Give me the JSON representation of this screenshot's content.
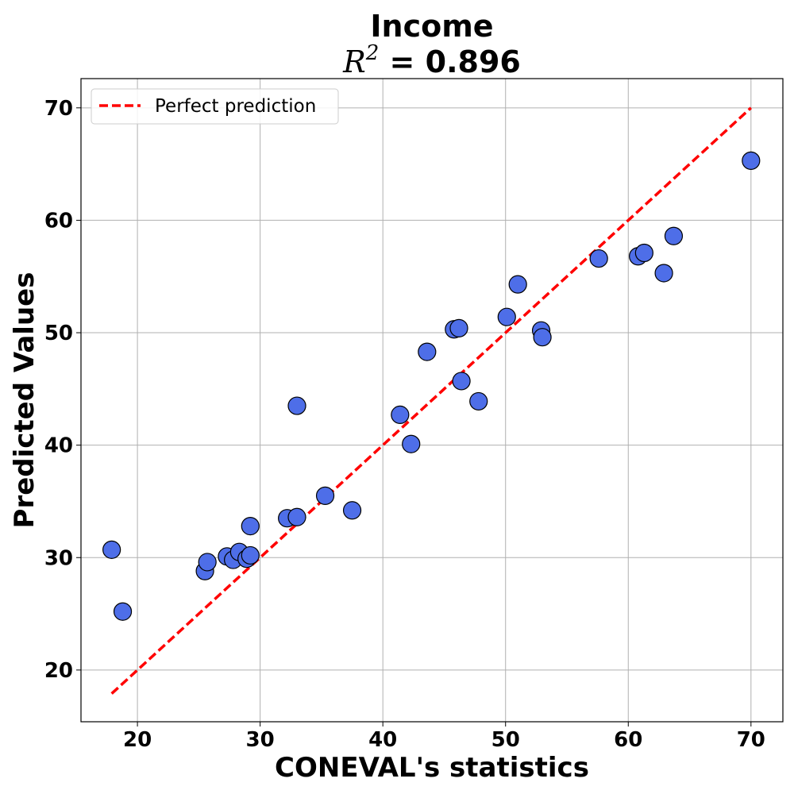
{
  "chart_data": {
    "type": "scatter",
    "title": "Income",
    "subtitle_prefix": "R",
    "subtitle_superscript": "2",
    "subtitle_value": " = 0.896",
    "xlabel": "CONEVAL's statistics",
    "ylabel": "Predicted Values",
    "xlim": [
      15.4,
      72.6
    ],
    "ylim": [
      15.4,
      72.6
    ],
    "xticks": [
      20,
      30,
      40,
      50,
      60,
      70
    ],
    "yticks": [
      20,
      30,
      40,
      50,
      60,
      70
    ],
    "grid": true,
    "legend_position": "top-left",
    "legend_label": "Perfect prediction",
    "reference_line": {
      "x": [
        17.9,
        70.0
      ],
      "y": [
        17.9,
        70.0
      ]
    },
    "point_color": "#4e6ee8",
    "point_edge_color": "#000000",
    "line_color": "#ff0000",
    "points": [
      {
        "x": 17.9,
        "y": 30.7
      },
      {
        "x": 18.8,
        "y": 25.2
      },
      {
        "x": 25.5,
        "y": 28.8
      },
      {
        "x": 25.7,
        "y": 29.6
      },
      {
        "x": 27.3,
        "y": 30.1
      },
      {
        "x": 27.8,
        "y": 29.8
      },
      {
        "x": 28.3,
        "y": 30.5
      },
      {
        "x": 28.9,
        "y": 29.9
      },
      {
        "x": 29.2,
        "y": 30.2
      },
      {
        "x": 29.2,
        "y": 32.8
      },
      {
        "x": 32.2,
        "y": 33.5
      },
      {
        "x": 33.0,
        "y": 33.6
      },
      {
        "x": 33.0,
        "y": 43.5
      },
      {
        "x": 35.3,
        "y": 35.5
      },
      {
        "x": 37.5,
        "y": 34.2
      },
      {
        "x": 41.4,
        "y": 42.7
      },
      {
        "x": 42.3,
        "y": 40.1
      },
      {
        "x": 43.6,
        "y": 48.3
      },
      {
        "x": 45.8,
        "y": 50.3
      },
      {
        "x": 46.2,
        "y": 50.4
      },
      {
        "x": 46.4,
        "y": 45.7
      },
      {
        "x": 47.8,
        "y": 43.9
      },
      {
        "x": 50.1,
        "y": 51.4
      },
      {
        "x": 51.0,
        "y": 54.3
      },
      {
        "x": 52.9,
        "y": 50.2
      },
      {
        "x": 53.0,
        "y": 49.6
      },
      {
        "x": 57.6,
        "y": 56.6
      },
      {
        "x": 60.8,
        "y": 56.8
      },
      {
        "x": 61.3,
        "y": 57.1
      },
      {
        "x": 62.9,
        "y": 55.3
      },
      {
        "x": 63.7,
        "y": 58.6
      },
      {
        "x": 70.0,
        "y": 65.3
      }
    ]
  }
}
